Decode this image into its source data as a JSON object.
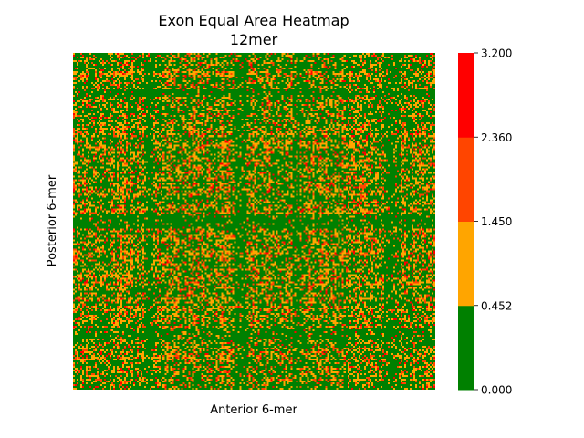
{
  "chart_data": {
    "type": "heatmap",
    "title": "Exon Equal Area Heatmap",
    "subtitle": "12mer",
    "xlabel": "Anterior 6-mer",
    "ylabel": "Posterior 6-mer",
    "x_ticks_shown": false,
    "y_ticks_shown": false,
    "grid": false,
    "colorbar": {
      "placement": "right",
      "bins": [
        {
          "from": 0.0,
          "to": 0.452,
          "color": "#008000"
        },
        {
          "from": 0.452,
          "to": 1.45,
          "color": "#FFA500"
        },
        {
          "from": 1.45,
          "to": 2.36,
          "color": "#FF4500"
        },
        {
          "from": 2.36,
          "to": 3.2,
          "color": "#FF0000"
        }
      ],
      "tick_labels": [
        "0.000",
        "0.452",
        "1.450",
        "2.360",
        "3.200"
      ],
      "range": [
        0.0,
        3.2
      ]
    },
    "approx_bin_fractions": [
      0.6,
      0.24,
      0.12,
      0.04
    ]
  }
}
